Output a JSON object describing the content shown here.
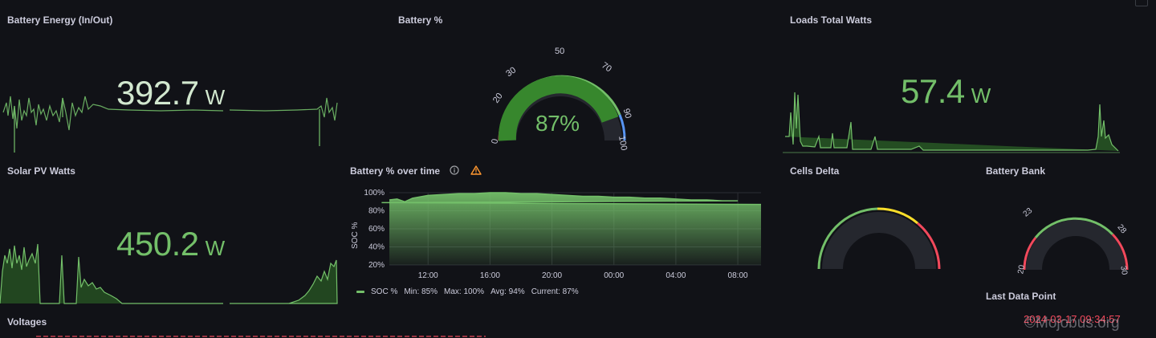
{
  "panels": {
    "battery_energy": {
      "title": "Battery Energy (In/Out)",
      "value": "392.7",
      "unit": "W"
    },
    "battery_pct": {
      "title": "Battery %",
      "value": "87%",
      "ticks": [
        "0",
        "20",
        "30",
        "50",
        "70",
        "90",
        "100"
      ]
    },
    "loads_total": {
      "title": "Loads Total Watts",
      "value": "57.4",
      "unit": "W"
    },
    "solar_pv": {
      "title": "Solar PV Watts",
      "value": "450.2",
      "unit": "W"
    },
    "battery_pct_over_time": {
      "title": "Battery % over time",
      "legend": {
        "series": "SOC %",
        "min": "Min: 85%",
        "max": "Max: 100%",
        "avg": "Avg: 94%",
        "current": "Current: 87%"
      }
    },
    "cells_delta": {
      "title": "Cells Delta"
    },
    "battery_bank": {
      "title": "Battery Bank",
      "ticks": [
        "20",
        "23",
        "28",
        "30"
      ]
    },
    "last_data_point": {
      "title": "Last Data Point",
      "value": "2024-03-17 09:34:57"
    },
    "voltages": {
      "title": "Voltages"
    }
  },
  "watermark": "©Mojobus.org",
  "colors": {
    "background": "#111217",
    "green": "#73bf69",
    "gauge_green": "#37872d",
    "red": "#f2495c",
    "yellow": "#fade2a",
    "blue": "#5794f2",
    "orange": "#ff9830"
  },
  "icons": {
    "info": "info-circle-icon",
    "warning": "warning-triangle-icon"
  },
  "chart_data": [
    {
      "type": "area",
      "title": "Battery % over time",
      "ylabel": "SOC %",
      "x": [
        "12:00",
        "16:00",
        "20:00",
        "00:00",
        "04:00",
        "08:00"
      ],
      "yticks": [
        "20%",
        "40%",
        "60%",
        "80%",
        "100%"
      ],
      "ylim": [
        20,
        100
      ],
      "series": [
        {
          "name": "SOC %",
          "points": [
            [
              "09:30",
              92
            ],
            [
              "10:00",
              93
            ],
            [
              "10:30",
              90
            ],
            [
              "11:00",
              94
            ],
            [
              "12:00",
              97
            ],
            [
              "13:00",
              98
            ],
            [
              "14:00",
              99
            ],
            [
              "15:00",
              99
            ],
            [
              "16:00",
              100
            ],
            [
              "17:00",
              100
            ],
            [
              "18:00",
              99
            ],
            [
              "19:00",
              99
            ],
            [
              "20:00",
              98
            ],
            [
              "21:00",
              97
            ],
            [
              "22:00",
              96
            ],
            [
              "23:00",
              96
            ],
            [
              "00:00",
              95
            ],
            [
              "01:00",
              95
            ],
            [
              "02:00",
              94
            ],
            [
              "03:00",
              94
            ],
            [
              "04:00",
              93
            ],
            [
              "05:00",
              92
            ],
            [
              "06:00",
              92
            ],
            [
              "07:00",
              91
            ],
            [
              "08:00",
              91
            ],
            [
              "09:00",
              89
            ],
            [
              "09:30",
              87
            ]
          ]
        }
      ],
      "grid": true
    }
  ]
}
